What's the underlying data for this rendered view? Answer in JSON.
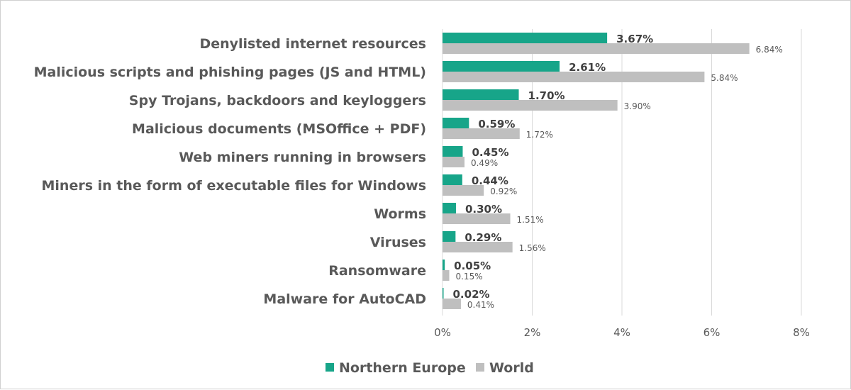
{
  "chart_data": {
    "type": "bar",
    "orientation": "horizontal",
    "categories": [
      "Denylisted internet resources",
      "Malicious scripts and phishing pages (JS and HTML)",
      "Spy Trojans, backdoors and keyloggers",
      "Malicious documents (MSOffice + PDF)",
      "Web miners running in browsers",
      "Miners in the form of executable files for Windows",
      "Worms",
      "Viruses",
      "Ransomware",
      "Malware for AutoCAD"
    ],
    "series": [
      {
        "name": "Northern Europe",
        "color": "#17a589",
        "values": [
          3.67,
          2.61,
          1.7,
          0.59,
          0.45,
          0.44,
          0.3,
          0.29,
          0.05,
          0.02
        ],
        "labels": [
          "3.67%",
          "2.61%",
          "1.70%",
          "0.59%",
          "0.45%",
          "0.44%",
          "0.30%",
          "0.29%",
          "0.05%",
          "0.02%"
        ]
      },
      {
        "name": "World",
        "color": "#bfbfbf",
        "values": [
          6.84,
          5.84,
          3.9,
          1.72,
          0.49,
          0.92,
          1.51,
          1.56,
          0.15,
          0.41
        ],
        "labels": [
          "6.84%",
          "5.84%",
          "3.90%",
          "1.72%",
          "0.49%",
          "0.92%",
          "1.51%",
          "1.56%",
          "0.15%",
          "0.41%"
        ]
      }
    ],
    "xlim": [
      0,
      8
    ],
    "xticks": [
      0,
      2,
      4,
      6,
      8
    ],
    "xtick_labels": [
      "0%",
      "2%",
      "4%",
      "6%",
      "8%"
    ],
    "grid": "vertical",
    "legend": "bottom-center"
  }
}
